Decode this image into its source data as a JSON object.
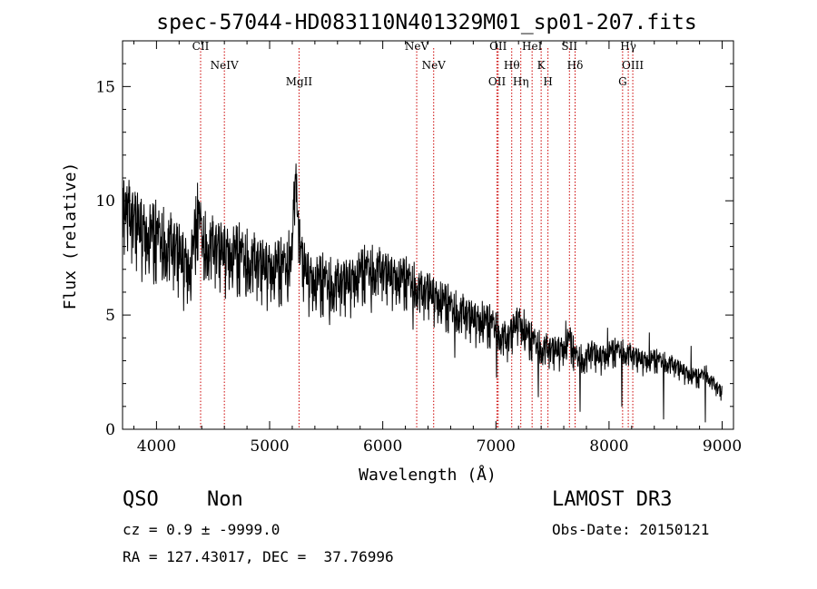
{
  "chart_data": {
    "type": "line",
    "title": "spec-57044-HD083110N401329M01_sp01-207.fits",
    "xlabel": "Wavelength (Å)",
    "ylabel": "Flux (relative)",
    "xlim": [
      3700,
      9100
    ],
    "ylim": [
      0,
      17
    ],
    "xticks": [
      "4000",
      "5000",
      "6000",
      "7000",
      "8000",
      "9000"
    ],
    "yticks": [
      "0",
      "5",
      "10",
      "15"
    ],
    "spectrum_anchors": [
      [
        3700,
        9.6
      ],
      [
        3750,
        9.2
      ],
      [
        3800,
        9.0
      ],
      [
        3850,
        8.8
      ],
      [
        3900,
        8.5
      ],
      [
        3950,
        8.3
      ],
      [
        4000,
        8.2
      ],
      [
        4050,
        8.1
      ],
      [
        4100,
        7.9
      ],
      [
        4150,
        7.8
      ],
      [
        4200,
        7.6
      ],
      [
        4250,
        7.2
      ],
      [
        4300,
        7.0
      ],
      [
        4330,
        7.8
      ],
      [
        4350,
        8.8
      ],
      [
        4370,
        9.2
      ],
      [
        4390,
        8.6
      ],
      [
        4420,
        8.0
      ],
      [
        4500,
        7.8
      ],
      [
        4600,
        7.7
      ],
      [
        4700,
        7.5
      ],
      [
        4800,
        7.3
      ],
      [
        4900,
        7.1
      ],
      [
        5000,
        7.0
      ],
      [
        5100,
        6.9
      ],
      [
        5150,
        7.0
      ],
      [
        5180,
        7.5
      ],
      [
        5200,
        8.6
      ],
      [
        5215,
        9.8
      ],
      [
        5230,
        10.4
      ],
      [
        5245,
        9.8
      ],
      [
        5260,
        8.4
      ],
      [
        5290,
        7.2
      ],
      [
        5350,
        6.6
      ],
      [
        5400,
        6.4
      ],
      [
        5500,
        6.3
      ],
      [
        5600,
        6.2
      ],
      [
        5700,
        6.4
      ],
      [
        5800,
        6.7
      ],
      [
        5900,
        6.9
      ],
      [
        6000,
        6.8
      ],
      [
        6100,
        6.6
      ],
      [
        6200,
        6.4
      ],
      [
        6300,
        6.2
      ],
      [
        6350,
        5.8
      ],
      [
        6400,
        6.0
      ],
      [
        6500,
        5.6
      ],
      [
        6600,
        5.2
      ],
      [
        6700,
        5.0
      ],
      [
        6800,
        4.8
      ],
      [
        6900,
        4.6
      ],
      [
        7000,
        4.4
      ],
      [
        7050,
        4.0
      ],
      [
        7100,
        3.8
      ],
      [
        7150,
        4.3
      ],
      [
        7200,
        4.8
      ],
      [
        7250,
        4.2
      ],
      [
        7300,
        3.9
      ],
      [
        7400,
        3.5
      ],
      [
        7500,
        3.4
      ],
      [
        7600,
        3.5
      ],
      [
        7650,
        3.9
      ],
      [
        7700,
        3.1
      ],
      [
        7800,
        3.0
      ],
      [
        7850,
        3.4
      ],
      [
        7900,
        3.1
      ],
      [
        8000,
        3.3
      ],
      [
        8100,
        3.4
      ],
      [
        8200,
        3.2
      ],
      [
        8300,
        3.0
      ],
      [
        8400,
        3.0
      ],
      [
        8500,
        2.9
      ],
      [
        8600,
        2.7
      ],
      [
        8700,
        2.4
      ],
      [
        8800,
        2.2
      ],
      [
        8850,
        2.5
      ],
      [
        8900,
        2.1
      ],
      [
        8950,
        1.8
      ],
      [
        9000,
        1.6
      ]
    ],
    "lines": [
      {
        "label": "CII",
        "wavelength": 4390
      },
      {
        "label": "NeIV",
        "wavelength": 4600
      },
      {
        "label": "MgII",
        "wavelength": 5260
      },
      {
        "label": "NeV",
        "wavelength": 6300
      },
      {
        "label": "NeV",
        "wavelength": 6450
      },
      {
        "label": "OII",
        "wavelength": 7010
      },
      {
        "label": "OII",
        "wavelength": 7020
      },
      {
        "label": "Hθ",
        "wavelength": 7140
      },
      {
        "label": "Hη",
        "wavelength": 7220
      },
      {
        "label": "HeI",
        "wavelength": 7320
      },
      {
        "label": "K",
        "wavelength": 7400
      },
      {
        "label": "H",
        "wavelength": 7460
      },
      {
        "label": "SII",
        "wavelength": 7650
      },
      {
        "label": "Hδ",
        "wavelength": 7700
      },
      {
        "label": "G",
        "wavelength": 8120
      },
      {
        "label": "Hγ",
        "wavelength": 8170
      },
      {
        "label": "OIII",
        "wavelength": 8210
      }
    ]
  },
  "footer": {
    "class": "QSO",
    "subclass": "Non",
    "survey": "LAMOST DR3",
    "cz": "cz = 0.9 ± -9999.0",
    "obs_date": "Obs-Date: 20150121",
    "coords": "RA = 127.43017, DEC =  37.76996"
  }
}
